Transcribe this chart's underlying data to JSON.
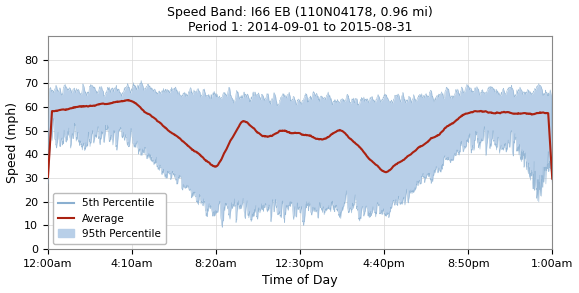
{
  "title_line1": "Speed Band: I66 EB (110N04178, 0.96 mi)",
  "title_line2": "Period 1: 2014-09-01 to 2015-08-31",
  "xlabel": "Time of Day",
  "ylabel": "Speed (mph)",
  "ylim": [
    0,
    90
  ],
  "yticks": [
    0,
    10,
    20,
    30,
    40,
    50,
    60,
    70,
    80
  ],
  "xtick_labels": [
    "12:00am",
    "4:10am",
    "8:20am",
    "12:30pm",
    "4:40pm",
    "8:50pm",
    "1:00am"
  ],
  "xtick_positions": [
    0,
    250,
    500,
    750,
    1000,
    1250,
    1500
  ],
  "xlim": [
    0,
    1500
  ],
  "band_color": "#b8cfe8",
  "avg_color": "#aa2211",
  "legend_entries": [
    "5th Percentile",
    "Average",
    "95th Percentile"
  ],
  "background_color": "#ffffff",
  "avg_noise": 1.2,
  "band_noise": 3.5
}
